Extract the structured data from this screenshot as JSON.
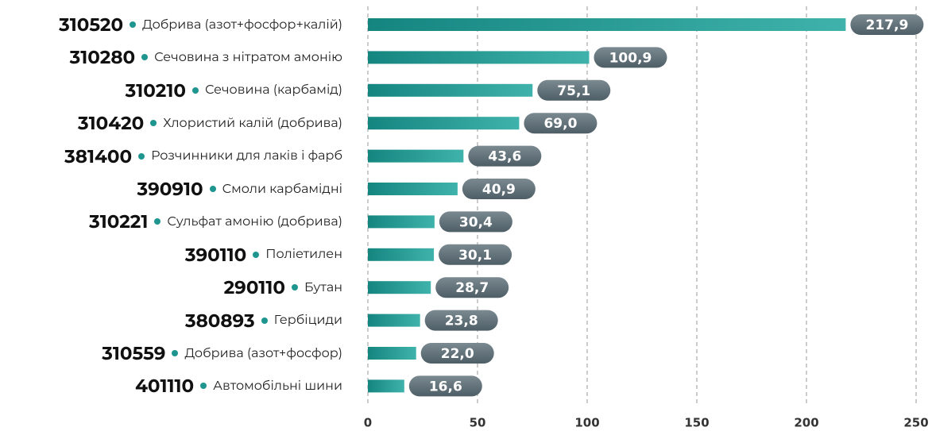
{
  "chart_data": {
    "type": "bar",
    "orientation": "horizontal",
    "codes": [
      "310520",
      "310280",
      "310210",
      "310420",
      "381400",
      "390910",
      "310221",
      "390110",
      "290110",
      "380893",
      "310559",
      "401110"
    ],
    "categories": [
      "Добрива (азот+фосфор+калій)",
      "Сечовина з нітратом амонію",
      "Сечовина (карбамід)",
      "Хлористий калій (добрива)",
      "Розчинники для лаків і фарб",
      "Смоли карбамідні",
      "Сульфат амонію (добрива)",
      "Поліетилен",
      "Бутан",
      "Гербіциди",
      "Добрива (азот+фосфор)",
      "Автомобільні шини"
    ],
    "values": [
      217.9,
      100.9,
      75.1,
      69.0,
      43.6,
      40.9,
      30.4,
      30.1,
      28.7,
      23.8,
      22.0,
      16.6
    ],
    "value_labels": [
      "217,9",
      "100,9",
      "75,1",
      "69,0",
      "43,6",
      "40,9",
      "30,4",
      "30,1",
      "28,7",
      "23,8",
      "22,0",
      "16,6"
    ],
    "color": "#1f9590",
    "label_color": "#5d6d75",
    "xlim": [
      0,
      250
    ],
    "xticks": [
      0,
      50,
      100,
      150,
      200,
      250
    ],
    "grid": true
  }
}
